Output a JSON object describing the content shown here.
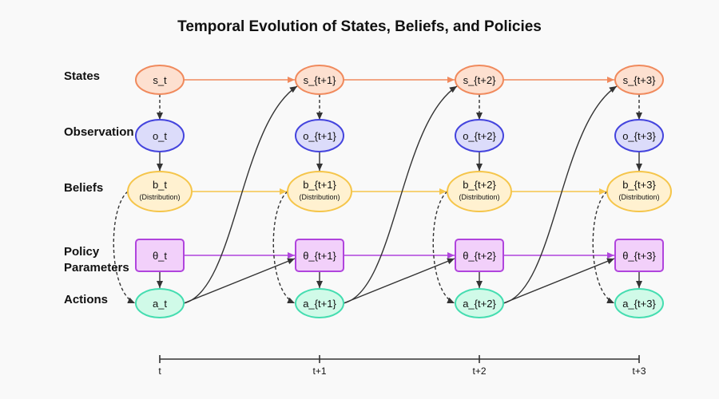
{
  "title": "Temporal Evolution of States, Beliefs, and Policies",
  "row_labels": {
    "states": "States",
    "observation": "Observation",
    "beliefs": "Beliefs",
    "policy_line1": "Policy",
    "policy_line2": "Parameters",
    "actions": "Actions"
  },
  "columns": [
    {
      "state": "s_t",
      "obs": "o_t",
      "belief": "b_t",
      "belief_sub": "(Distribution)",
      "param": "θ_t",
      "action": "a_t",
      "tick": "t"
    },
    {
      "state": "s_{t+1}",
      "obs": "o_{t+1}",
      "belief": "b_{t+1}",
      "belief_sub": "(Distribution)",
      "param": "θ_{t+1}",
      "action": "a_{t+1}",
      "tick": "t+1"
    },
    {
      "state": "s_{t+2}",
      "obs": "o_{t+2}",
      "belief": "b_{t+2}",
      "belief_sub": "(Distribution)",
      "param": "θ_{t+2}",
      "action": "a_{t+2}",
      "tick": "t+2"
    },
    {
      "state": "s_{t+3}",
      "obs": "o_{t+3}",
      "belief": "b_{t+3}",
      "belief_sub": "(Distribution)",
      "param": "θ_{t+3}",
      "action": "a_{t+3}",
      "tick": "t+3"
    }
  ],
  "colors": {
    "background": "#f9f9f9",
    "state_fill": "#fde0d0",
    "state_stroke": "#f08a5d",
    "obs_fill": "#dcdcfa",
    "obs_stroke": "#4444dd",
    "belief_fill": "#fff1d0",
    "belief_stroke": "#f5c54a",
    "param_fill": "#f2d0fa",
    "param_stroke": "#b044dd",
    "action_fill": "#d0fae8",
    "action_stroke": "#44ddb0",
    "dark_arrow": "#333333"
  }
}
